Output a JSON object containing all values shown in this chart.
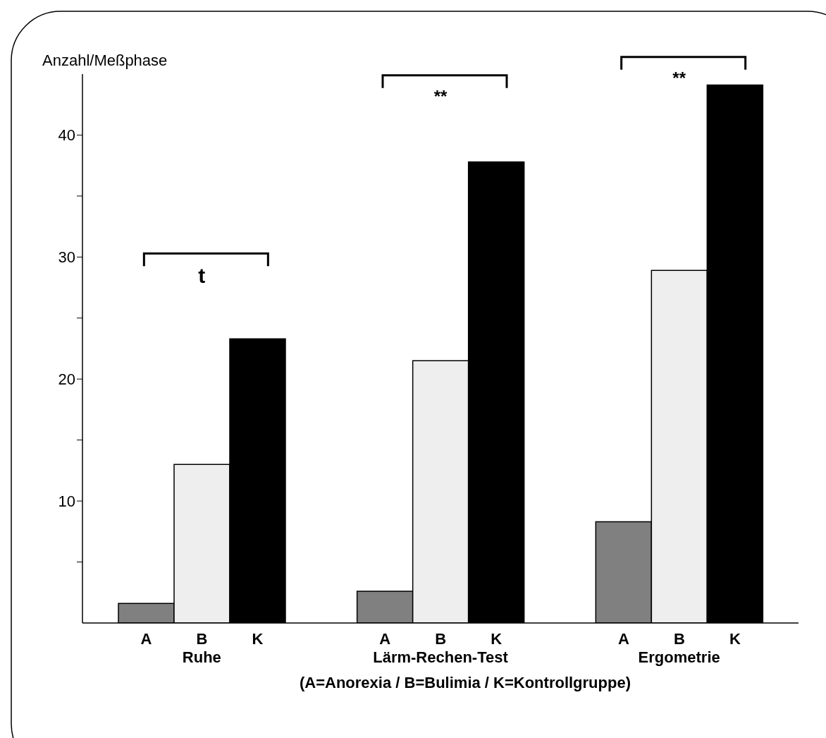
{
  "chart_data": {
    "type": "bar",
    "ylabel": "Anzahl/Meßphase",
    "categories": [
      "Ruhe",
      "Lärm-Rechen-Test",
      "Ergometrie"
    ],
    "series": [
      {
        "name": "A",
        "color": "#808080",
        "values": [
          1.6,
          2.6,
          8.3
        ]
      },
      {
        "name": "B",
        "color": "#eeeeee",
        "values": [
          13.0,
          21.5,
          28.9
        ]
      },
      {
        "name": "K",
        "color": "#000000",
        "values": [
          23.3,
          37.8,
          44.1
        ]
      }
    ],
    "ylim": [
      0,
      45
    ],
    "yticks": [
      {
        "value": 5,
        "label": null
      },
      10,
      {
        "value": 15,
        "label": null
      },
      20,
      {
        "value": 25,
        "label": null
      },
      30,
      {
        "value": 35,
        "label": null
      },
      40
    ],
    "annotations": [
      "t",
      "**",
      "**",
      "(A=Anorexia / B=Bulimia / K=Kontrollgruppe)"
    ]
  }
}
